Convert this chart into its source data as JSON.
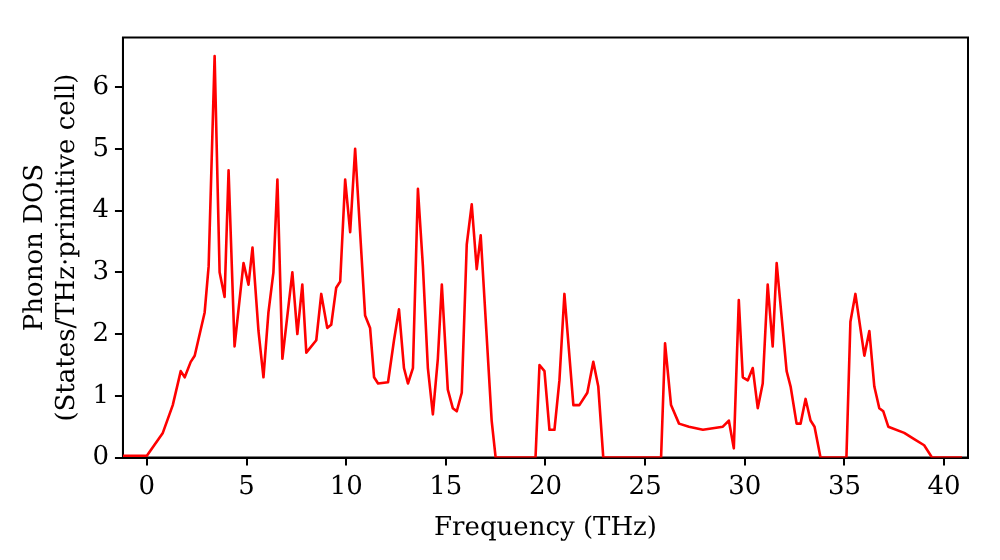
{
  "chart_data": {
    "type": "line",
    "xlabel": "Frequency (THz)",
    "ylabel": "Phonon DOS\n(States/THz·primitive cell)",
    "xlim": [
      -1.2,
      41.2
    ],
    "ylim": [
      0,
      6.8
    ],
    "xticks": [
      0,
      5,
      10,
      15,
      20,
      25,
      30,
      35,
      40
    ],
    "yticks": [
      0,
      1,
      2,
      3,
      4,
      5,
      6
    ],
    "grid": false,
    "legend": false,
    "marker": "none",
    "line_style": "solid",
    "series": [
      {
        "color": "#ff0000",
        "x": [
          -1.2,
          0,
          0.8,
          1.3,
          1.7,
          1.9,
          2.2,
          2.4,
          2.9,
          3.1,
          3.4,
          3.65,
          3.9,
          4.1,
          4.4,
          4.85,
          5.1,
          5.3,
          5.6,
          5.85,
          6.1,
          6.35,
          6.55,
          6.8,
          7.3,
          7.55,
          7.8,
          8.0,
          8.5,
          8.75,
          9.05,
          9.25,
          9.5,
          9.7,
          9.95,
          10.2,
          10.45,
          10.95,
          11.2,
          11.4,
          11.6,
          12.1,
          12.4,
          12.65,
          12.9,
          13.1,
          13.35,
          13.6,
          13.85,
          14.1,
          14.35,
          14.6,
          14.8,
          15.1,
          15.35,
          15.55,
          15.8,
          16.05,
          16.3,
          16.55,
          16.75,
          17.3,
          17.5,
          19.5,
          19.7,
          19.95,
          20.2,
          20.45,
          20.7,
          20.95,
          21.4,
          21.7,
          22.1,
          22.4,
          22.65,
          22.9,
          25.8,
          26.0,
          26.3,
          26.7,
          27.2,
          27.9,
          28.9,
          29.2,
          29.45,
          29.7,
          29.9,
          30.15,
          30.4,
          30.65,
          30.9,
          31.15,
          31.4,
          31.6,
          32.1,
          32.3,
          32.6,
          32.8,
          33.05,
          33.3,
          33.5,
          33.8,
          35.1,
          35.3,
          35.55,
          36.0,
          36.25,
          36.5,
          36.75,
          36.95,
          37.2,
          38.0,
          38.5,
          39.0,
          39.4,
          40.9
        ],
        "values": [
          0.03,
          0.03,
          0.4,
          0.85,
          1.4,
          1.3,
          1.55,
          1.65,
          2.35,
          3.1,
          6.5,
          3.0,
          2.6,
          4.65,
          1.8,
          3.15,
          2.8,
          3.4,
          2.05,
          1.3,
          2.35,
          3.0,
          4.5,
          1.6,
          3.0,
          2.0,
          2.8,
          1.7,
          1.9,
          2.65,
          2.1,
          2.15,
          2.75,
          2.85,
          4.5,
          3.65,
          5.0,
          2.3,
          2.1,
          1.3,
          1.2,
          1.22,
          1.9,
          2.4,
          1.45,
          1.2,
          1.45,
          4.35,
          3.1,
          1.45,
          0.7,
          1.6,
          2.8,
          1.1,
          0.8,
          0.75,
          1.05,
          3.45,
          4.1,
          3.05,
          3.6,
          0.6,
          0,
          0,
          1.5,
          1.4,
          0.45,
          0.45,
          1.25,
          2.65,
          0.85,
          0.85,
          1.05,
          1.55,
          1.15,
          0,
          0,
          1.85,
          0.85,
          0.55,
          0.5,
          0.45,
          0.5,
          0.6,
          0.15,
          2.55,
          1.3,
          1.25,
          1.45,
          0.8,
          1.2,
          2.8,
          1.8,
          3.15,
          1.4,
          1.15,
          0.55,
          0.55,
          0.95,
          0.6,
          0.5,
          0,
          0,
          2.2,
          2.65,
          1.65,
          2.05,
          1.15,
          0.8,
          0.75,
          0.5,
          0.4,
          0.3,
          0.2,
          0,
          0
        ]
      }
    ]
  }
}
